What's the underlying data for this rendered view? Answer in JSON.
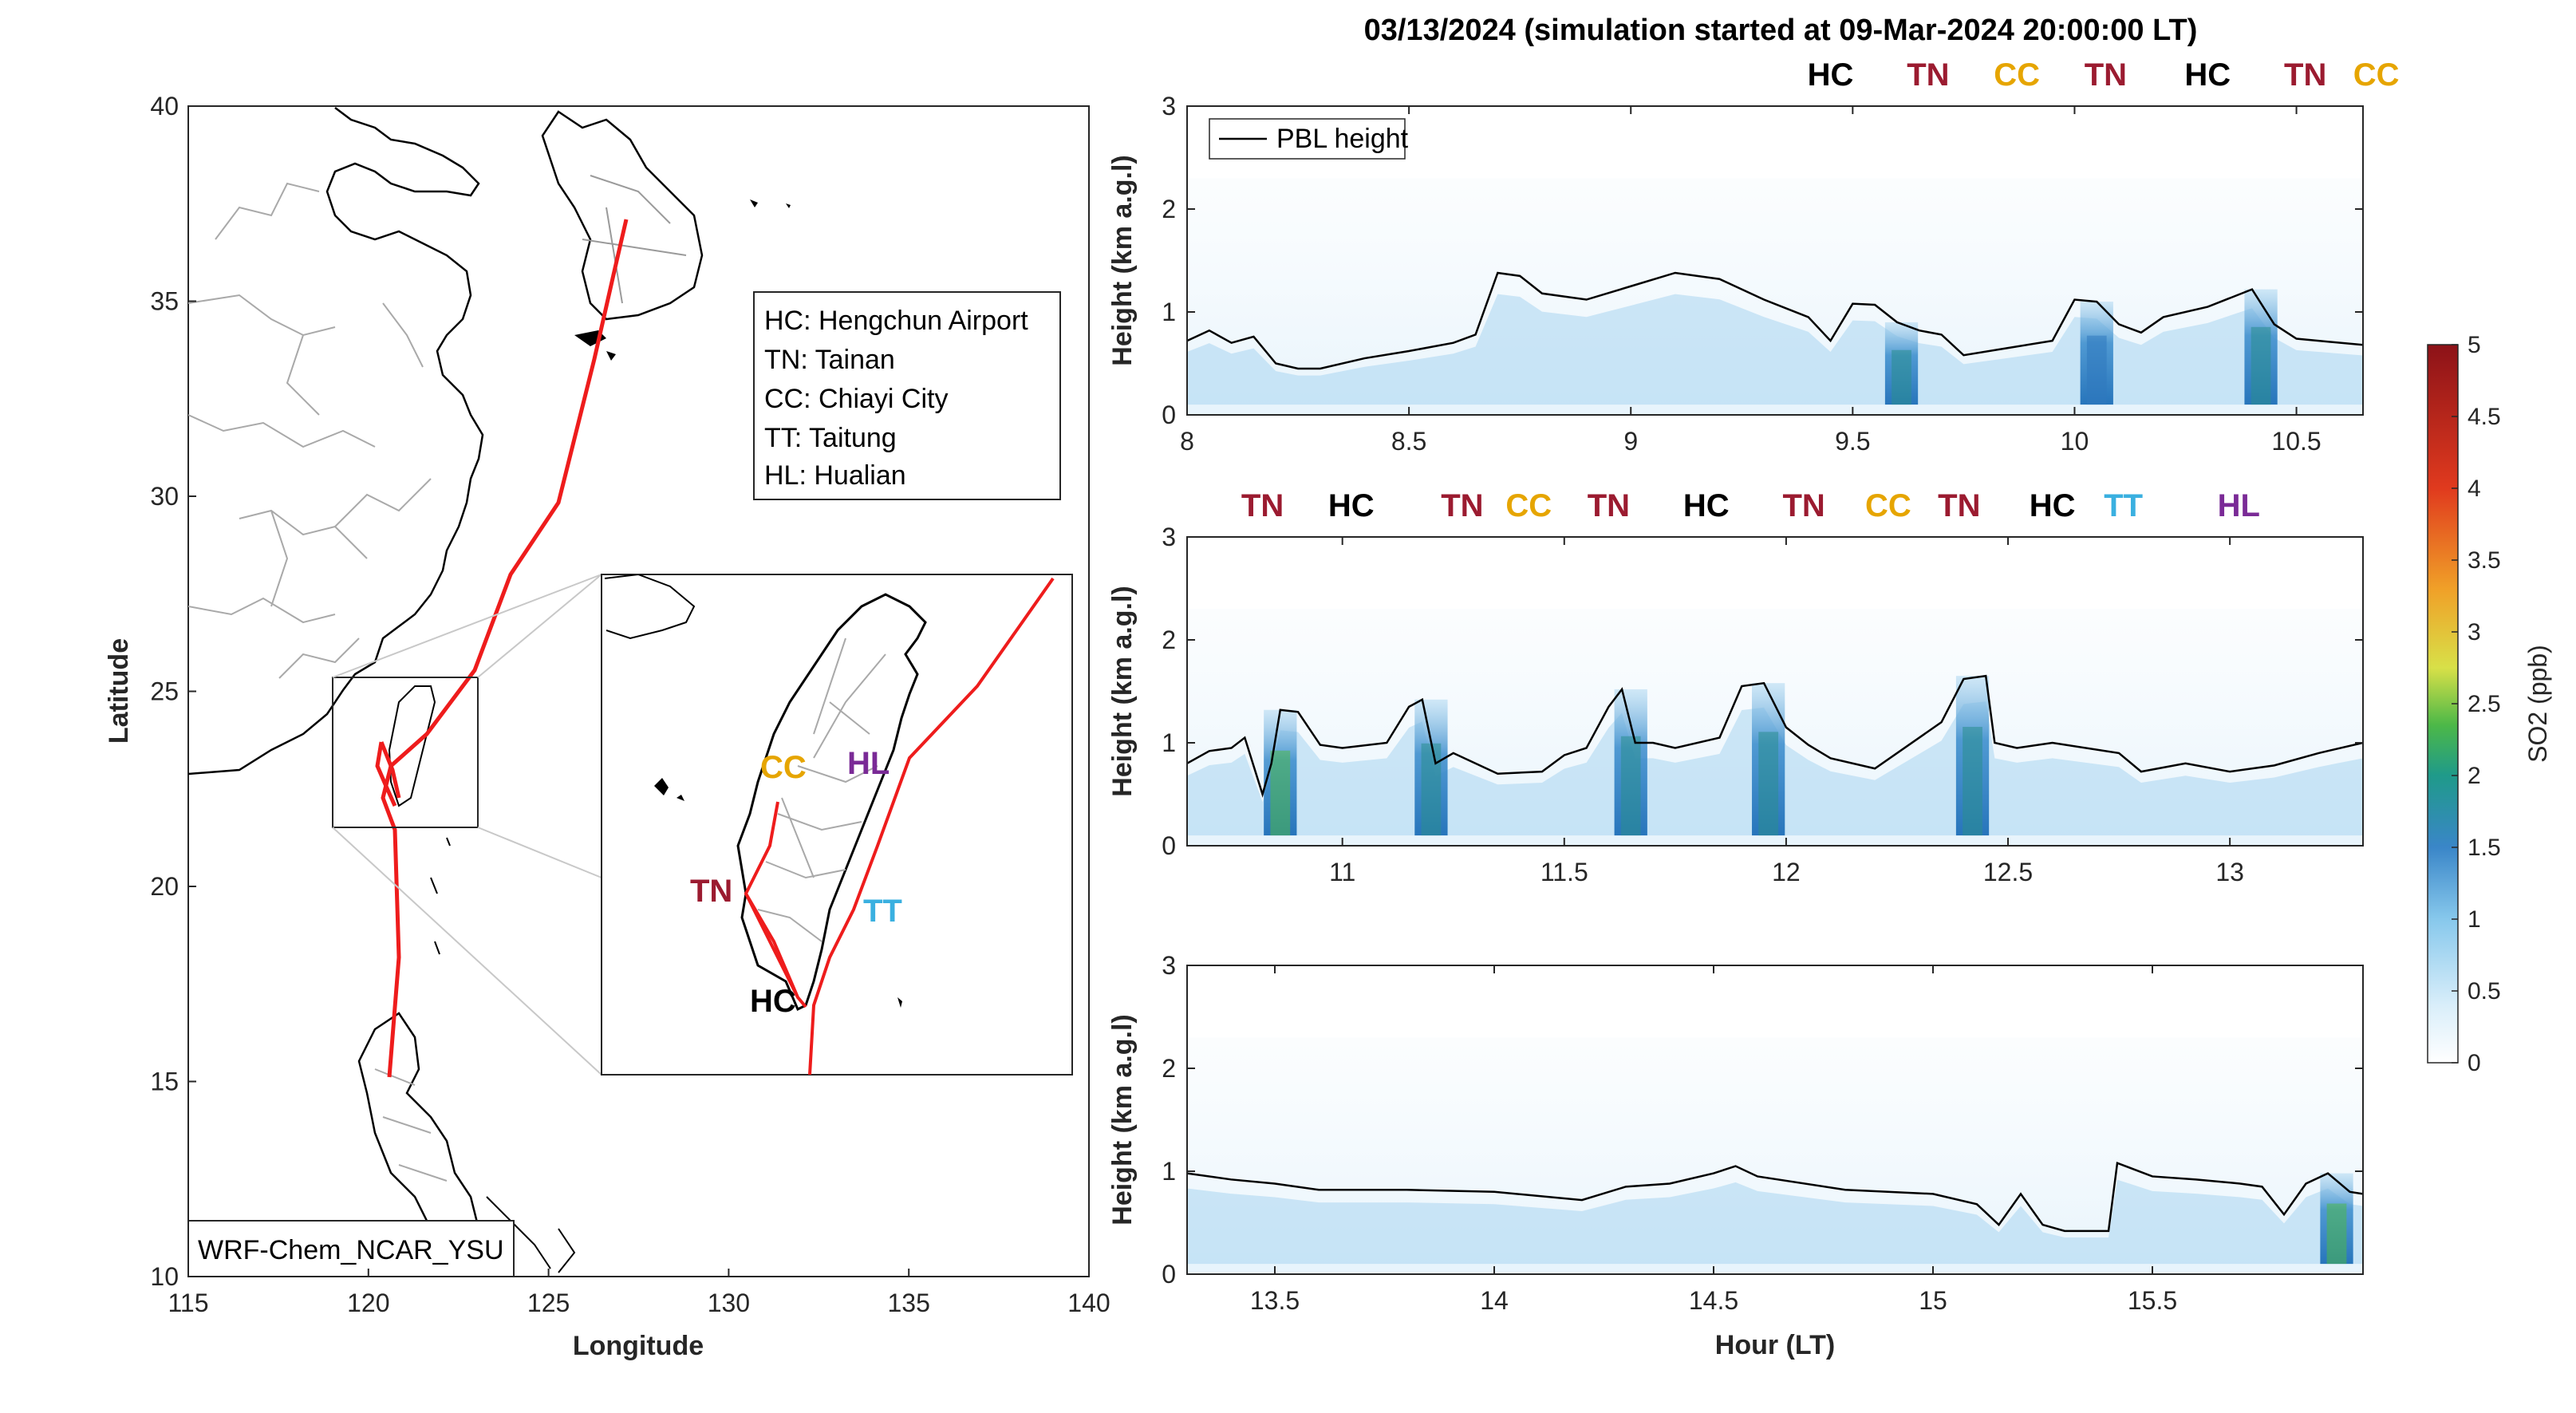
{
  "title": "03/13/2024 (simulation started at 09-Mar-2024 20:00:00 LT)",
  "colors": {
    "HC": "#000000",
    "TN": "#9b1b30",
    "CC": "#e6a500",
    "TT": "#3ab0e0",
    "HL": "#7a2a96",
    "track": "#ee1c1c"
  },
  "map": {
    "xlabel": "Longitude",
    "ylabel": "Latitude",
    "xticks": [
      "115",
      "120",
      "125",
      "130",
      "135",
      "140"
    ],
    "yticks": [
      "10",
      "15",
      "20",
      "25",
      "30",
      "35",
      "40"
    ],
    "model_label": "WRF-Chem_NCAR_YSU",
    "legend": [
      "HC: Hengchun Airport",
      "TN: Tainan",
      "CC: Chiayi City",
      "TT: Taitung",
      "HL: Hualian"
    ],
    "inset_sites": {
      "CC": "CC",
      "HL": "HL",
      "TN": "TN",
      "TT": "TT",
      "HC": "HC"
    }
  },
  "colorbar": {
    "label": "SO2 (ppb)",
    "ticks": [
      "0",
      "0.5",
      "1",
      "1.5",
      "2",
      "2.5",
      "3",
      "3.5",
      "4",
      "4.5",
      "5"
    ]
  },
  "chart_data": [
    {
      "type": "heatmap",
      "xlabel": "",
      "ylabel": "Height (km a.g.l)",
      "xlim": [
        8.0,
        10.65
      ],
      "ylim": [
        0,
        3
      ],
      "xticks": [
        "8",
        "8.5",
        "9",
        "9.5",
        "10",
        "10.5"
      ],
      "yticks": [
        "0",
        "1",
        "2",
        "3"
      ],
      "legend": "PBL height",
      "legend_position": "top-left",
      "site_labels": [
        "HC",
        "TN",
        "CC",
        "TN",
        "HC",
        "TN",
        "CC"
      ],
      "site_x": [
        9.45,
        9.67,
        9.87,
        10.07,
        10.3,
        10.52,
        10.68
      ],
      "pbl": {
        "x": [
          8.0,
          8.05,
          8.1,
          8.15,
          8.2,
          8.25,
          8.3,
          8.4,
          8.5,
          8.6,
          8.65,
          8.7,
          8.75,
          8.8,
          8.9,
          9.0,
          9.1,
          9.2,
          9.3,
          9.4,
          9.45,
          9.5,
          9.55,
          9.6,
          9.65,
          9.7,
          9.75,
          9.85,
          9.95,
          10.0,
          10.05,
          10.1,
          10.15,
          10.2,
          10.3,
          10.4,
          10.45,
          10.5,
          10.55,
          10.65
        ],
        "y": [
          0.72,
          0.82,
          0.7,
          0.76,
          0.5,
          0.45,
          0.45,
          0.55,
          0.62,
          0.7,
          0.78,
          1.38,
          1.35,
          1.18,
          1.12,
          1.25,
          1.38,
          1.32,
          1.12,
          0.95,
          0.72,
          1.08,
          1.07,
          0.9,
          0.82,
          0.78,
          0.58,
          0.65,
          0.72,
          1.12,
          1.1,
          0.88,
          0.8,
          0.95,
          1.05,
          1.22,
          0.88,
          0.74,
          0.72,
          0.68
        ]
      },
      "so2_peaks": [
        {
          "x": 9.61,
          "value": 1.9
        },
        {
          "x": 10.05,
          "value": 1.8
        },
        {
          "x": 10.42,
          "value": 1.9
        }
      ]
    },
    {
      "type": "heatmap",
      "xlabel": "",
      "ylabel": "Height (km a.g.l)",
      "xlim": [
        10.65,
        13.3
      ],
      "ylim": [
        0,
        3
      ],
      "xticks": [
        "11",
        "11.5",
        "12",
        "12.5",
        "13"
      ],
      "yticks": [
        "0",
        "1",
        "2",
        "3"
      ],
      "site_labels": [
        "TN",
        "HC",
        "TN",
        "CC",
        "TN",
        "HC",
        "TN",
        "CC",
        "TN",
        "HC",
        "TT",
        "HL"
      ],
      "site_x": [
        10.82,
        11.02,
        11.27,
        11.42,
        11.6,
        11.82,
        12.04,
        12.23,
        12.39,
        12.6,
        12.76,
        13.02
      ],
      "pbl": {
        "x": [
          10.65,
          10.7,
          10.75,
          10.78,
          10.82,
          10.84,
          10.86,
          10.9,
          10.95,
          11.0,
          11.1,
          11.15,
          11.18,
          11.21,
          11.25,
          11.35,
          11.45,
          11.5,
          11.55,
          11.6,
          11.63,
          11.66,
          11.7,
          11.75,
          11.85,
          11.9,
          11.95,
          12.0,
          12.05,
          12.1,
          12.2,
          12.3,
          12.35,
          12.4,
          12.45,
          12.47,
          12.52,
          12.6,
          12.75,
          12.8,
          12.9,
          13.0,
          13.1,
          13.2,
          13.3
        ],
        "y": [
          0.8,
          0.92,
          0.95,
          1.05,
          0.5,
          0.8,
          1.32,
          1.3,
          0.98,
          0.95,
          1.0,
          1.35,
          1.42,
          0.8,
          0.9,
          0.7,
          0.72,
          0.88,
          0.95,
          1.35,
          1.52,
          1.0,
          1.0,
          0.95,
          1.05,
          1.55,
          1.58,
          1.15,
          0.98,
          0.85,
          0.75,
          1.05,
          1.2,
          1.62,
          1.65,
          1.0,
          0.95,
          1.0,
          0.9,
          0.72,
          0.8,
          0.72,
          0.78,
          0.9,
          1.0
        ]
      },
      "so2_peaks": [
        {
          "x": 10.86,
          "value": 2.1
        },
        {
          "x": 11.2,
          "value": 1.9
        },
        {
          "x": 11.65,
          "value": 1.9
        },
        {
          "x": 11.96,
          "value": 2.0
        },
        {
          "x": 12.42,
          "value": 2.0
        }
      ]
    },
    {
      "type": "heatmap",
      "xlabel": "Hour (LT)",
      "ylabel": "Height (km a.g.l)",
      "xlim": [
        13.3,
        15.98
      ],
      "ylim": [
        0,
        3
      ],
      "xticks": [
        "13.5",
        "14",
        "14.5",
        "15",
        "15.5"
      ],
      "yticks": [
        "0",
        "1",
        "2",
        "3"
      ],
      "pbl": {
        "x": [
          13.3,
          13.4,
          13.5,
          13.6,
          13.8,
          14.0,
          14.2,
          14.3,
          14.4,
          14.5,
          14.55,
          14.6,
          14.8,
          15.0,
          15.1,
          15.15,
          15.2,
          15.25,
          15.3,
          15.35,
          15.4,
          15.42,
          15.5,
          15.6,
          15.7,
          15.75,
          15.8,
          15.85,
          15.9,
          15.95,
          15.98
        ],
        "y": [
          0.98,
          0.92,
          0.88,
          0.82,
          0.82,
          0.8,
          0.72,
          0.85,
          0.88,
          0.98,
          1.05,
          0.95,
          0.82,
          0.78,
          0.68,
          0.48,
          0.78,
          0.48,
          0.42,
          0.42,
          0.42,
          1.08,
          0.95,
          0.92,
          0.88,
          0.85,
          0.58,
          0.88,
          0.98,
          0.8,
          0.78
        ]
      },
      "so2_peaks": [
        {
          "x": 15.92,
          "value": 2.3
        }
      ]
    }
  ]
}
